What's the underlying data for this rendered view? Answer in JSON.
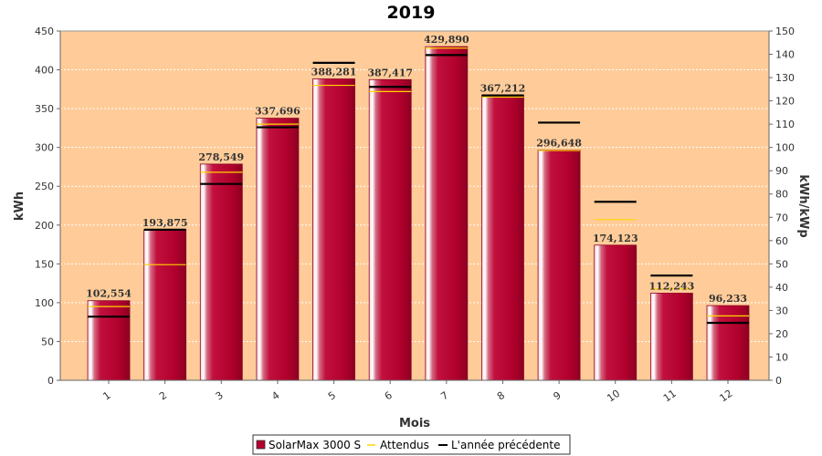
{
  "chart_data": {
    "type": "bar",
    "title": "2019",
    "xlabel": "Mois",
    "ylabel": "kWh",
    "y2label": "kWh/kWp",
    "categories": [
      "1",
      "2",
      "3",
      "4",
      "5",
      "6",
      "7",
      "8",
      "9",
      "10",
      "11",
      "12"
    ],
    "ylim": [
      0,
      450
    ],
    "y2lim": [
      0,
      150
    ],
    "yticks": [
      0,
      50,
      100,
      150,
      200,
      250,
      300,
      350,
      400,
      450
    ],
    "y2ticks": [
      0,
      10,
      20,
      30,
      40,
      50,
      60,
      70,
      80,
      90,
      100,
      110,
      120,
      130,
      140,
      150
    ],
    "grid": true,
    "legend_position": "bottom",
    "series": [
      {
        "name": "SolarMax 3000 S",
        "kind": "bar",
        "color": "#b5002e",
        "values": [
          102.554,
          193.875,
          278.549,
          337.696,
          388.281,
          387.417,
          429.89,
          367.212,
          296.648,
          174.123,
          112.243,
          96.233
        ],
        "labels": [
          "102,554",
          "193,875",
          "278,549",
          "337,696",
          "388,281",
          "387,417",
          "429,890",
          "367,212",
          "296,648",
          "174,123",
          "112,243",
          "96,233"
        ]
      },
      {
        "name": "Attendus",
        "kind": "marker",
        "color": "#ffd700",
        "values": [
          95,
          149,
          268,
          330,
          380,
          372,
          428,
          365,
          296,
          207,
          118,
          83
        ]
      },
      {
        "name": "L'année précédente",
        "kind": "marker",
        "color": "#000000",
        "values": [
          82,
          194,
          253,
          326,
          409,
          378,
          419,
          367,
          332,
          230,
          135,
          74
        ]
      }
    ]
  }
}
